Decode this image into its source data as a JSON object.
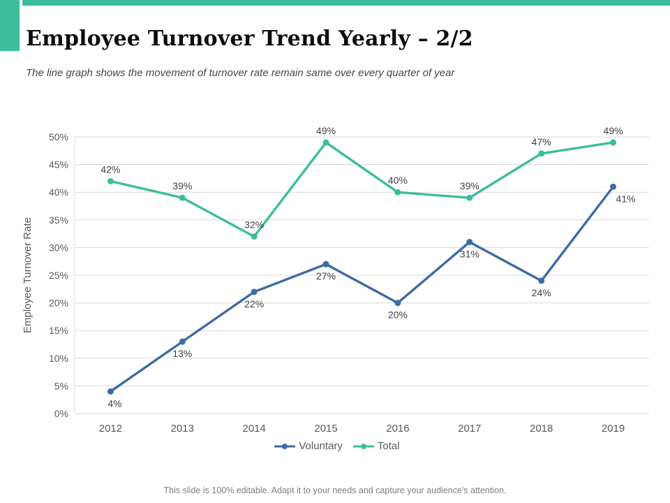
{
  "colors": {
    "accent_teal": "#3CBD9C",
    "series_blue": "#3E6BA3",
    "grid": "#D9D9D9",
    "axis_text": "#595959",
    "data_label_text": "#404040",
    "footer_text": "#7f7f7f"
  },
  "header": {
    "title": "Employee Turnover Trend Yearly – 2/2",
    "subtitle": "The line graph shows the movement of turnover rate remain same over every quarter of year"
  },
  "footer": {
    "note": "This slide is 100% editable. Adapt it to your needs and capture your audience's attention."
  },
  "chart_data": {
    "type": "line",
    "title": "",
    "xlabel": "",
    "ylabel": "Employee Turnover Rate",
    "categories": [
      "2012",
      "2013",
      "2014",
      "2015",
      "2016",
      "2017",
      "2018",
      "2019"
    ],
    "series": [
      {
        "name": "Voluntary",
        "color": "#3E6BA3",
        "values": [
          4,
          13,
          22,
          27,
          20,
          31,
          24,
          41
        ],
        "labels": [
          "4%",
          "13%",
          "22%",
          "27%",
          "20%",
          "31%",
          "24%",
          "41%"
        ],
        "label_position": "below",
        "label_dx": [
          6,
          0,
          0,
          0,
          0,
          0,
          0,
          18
        ]
      },
      {
        "name": "Total",
        "color": "#3CBD9C",
        "values": [
          42,
          39,
          32,
          49,
          40,
          39,
          47,
          49
        ],
        "labels": [
          "42%",
          "39%",
          "32%",
          "49%",
          "40%",
          "39%",
          "47%",
          "49%"
        ],
        "label_position": "above",
        "label_dx": [
          0,
          0,
          0,
          0,
          0,
          0,
          0,
          0
        ]
      }
    ],
    "ylim": [
      0,
      50
    ],
    "ytick_step": 5,
    "ytick_suffix": "%",
    "grid": true,
    "legend_position": "bottom"
  }
}
